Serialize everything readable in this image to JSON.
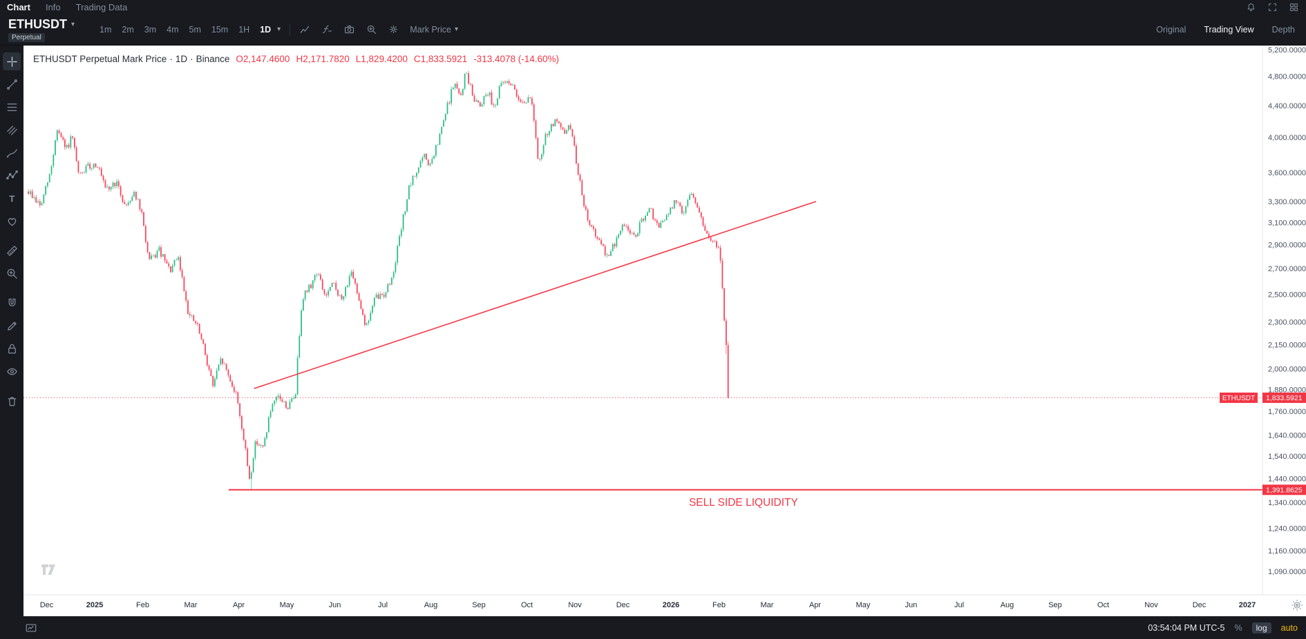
{
  "menu_bar": {
    "tabs": [
      {
        "label": "Chart",
        "active": true
      },
      {
        "label": "Info",
        "active": false
      },
      {
        "label": "Trading Data",
        "active": false
      }
    ]
  },
  "symbol_bar": {
    "symbol": "ETHUSDT",
    "contract_badge": "Perpetual",
    "intervals": [
      "1m",
      "2m",
      "3m",
      "4m",
      "5m",
      "15m",
      "1H",
      "1D"
    ],
    "active_interval": "1D",
    "price_type": "Mark Price",
    "view_tabs": [
      {
        "label": "Original",
        "active": false
      },
      {
        "label": "Trading View",
        "active": true
      },
      {
        "label": "Depth",
        "active": false
      }
    ]
  },
  "drawing_toolbar": [
    "crosshair-icon",
    "trendline-icon",
    "fib-retracement-icon",
    "pitchfork-icon",
    "brush-icon",
    "pattern-icon",
    "text-icon",
    "emoji-icon",
    "measure-icon",
    "zoom-in-icon",
    "magnet-icon",
    "edit-icon",
    "lock-icon",
    "visibility-icon",
    "trash-icon"
  ],
  "legend": {
    "title": "ETHUSDT Perpetual Mark Price",
    "sep": "·",
    "interval": "1D",
    "exchange": "Binance",
    "open": "O2,147.4600",
    "high": "H2,171.7820",
    "low": "L1,829.4200",
    "close": "C1,833.5921",
    "change": "-313.4078 (-14.60%)"
  },
  "chart_data": {
    "type": "candlestick",
    "title": "ETHUSDT Perpetual Mark Price · 1D · Binance",
    "scale": "log",
    "last_candle": {
      "open": 2147.46,
      "high": 2171.782,
      "low": 1829.42,
      "close": 1833.5921,
      "change": -313.4078,
      "change_pct": -14.6
    },
    "current_price": 1833.5921,
    "y_ticks": [
      5200,
      4800,
      4400,
      4000,
      3600,
      3300,
      3100,
      2900,
      2700,
      2500,
      2300,
      2150,
      2000,
      1880,
      1760,
      1640,
      1540,
      1440,
      1340,
      1240,
      1160,
      1090
    ],
    "x_ticks": [
      {
        "t": 0,
        "label": "Dec"
      },
      {
        "t": 1,
        "label": "2025",
        "year": true
      },
      {
        "t": 2,
        "label": "Feb"
      },
      {
        "t": 3,
        "label": "Mar"
      },
      {
        "t": 4,
        "label": "Apr"
      },
      {
        "t": 5,
        "label": "May"
      },
      {
        "t": 6,
        "label": "Jun"
      },
      {
        "t": 7,
        "label": "Jul"
      },
      {
        "t": 8,
        "label": "Aug"
      },
      {
        "t": 9,
        "label": "Sep"
      },
      {
        "t": 10,
        "label": "Oct"
      },
      {
        "t": 11,
        "label": "Nov"
      },
      {
        "t": 12,
        "label": "Dec"
      },
      {
        "t": 13,
        "label": "2026",
        "year": true
      },
      {
        "t": 14,
        "label": "Feb"
      },
      {
        "t": 15,
        "label": "Mar"
      },
      {
        "t": 16,
        "label": "Apr"
      },
      {
        "t": 17,
        "label": "May"
      },
      {
        "t": 18,
        "label": "Jun"
      },
      {
        "t": 19,
        "label": "Jul"
      },
      {
        "t": 20,
        "label": "Aug"
      },
      {
        "t": 21,
        "label": "Sep"
      },
      {
        "t": 22,
        "label": "Oct"
      },
      {
        "t": 23,
        "label": "Nov"
      },
      {
        "t": 24,
        "label": "Dec"
      },
      {
        "t": 25,
        "label": "2027",
        "year": true
      }
    ],
    "price_path": [
      [
        -0.36,
        3400
      ],
      [
        -0.1,
        3250
      ],
      [
        0.1,
        3600
      ],
      [
        0.24,
        4100
      ],
      [
        0.42,
        3850
      ],
      [
        0.55,
        4000
      ],
      [
        0.69,
        3550
      ],
      [
        0.85,
        3650
      ],
      [
        1.07,
        3700
      ],
      [
        1.25,
        3400
      ],
      [
        1.46,
        3500
      ],
      [
        1.66,
        3250
      ],
      [
        1.85,
        3400
      ],
      [
        2.01,
        3150
      ],
      [
        2.15,
        2750
      ],
      [
        2.36,
        2850
      ],
      [
        2.58,
        2680
      ],
      [
        2.76,
        2780
      ],
      [
        2.98,
        2350
      ],
      [
        3.15,
        2280
      ],
      [
        3.33,
        2080
      ],
      [
        3.48,
        1900
      ],
      [
        3.66,
        2060
      ],
      [
        3.85,
        1930
      ],
      [
        3.99,
        1830
      ],
      [
        4.12,
        1620
      ],
      [
        4.25,
        1430
      ],
      [
        4.38,
        1620
      ],
      [
        4.52,
        1570
      ],
      [
        4.68,
        1760
      ],
      [
        4.85,
        1840
      ],
      [
        5.04,
        1780
      ],
      [
        5.2,
        1850
      ],
      [
        5.34,
        2480
      ],
      [
        5.51,
        2560
      ],
      [
        5.65,
        2680
      ],
      [
        5.82,
        2480
      ],
      [
        6.0,
        2580
      ],
      [
        6.17,
        2440
      ],
      [
        6.34,
        2670
      ],
      [
        6.52,
        2480
      ],
      [
        6.67,
        2260
      ],
      [
        6.86,
        2470
      ],
      [
        7.04,
        2500
      ],
      [
        7.21,
        2620
      ],
      [
        7.38,
        2980
      ],
      [
        7.56,
        3420
      ],
      [
        7.73,
        3620
      ],
      [
        7.87,
        3780
      ],
      [
        8.01,
        3670
      ],
      [
        8.18,
        3950
      ],
      [
        8.35,
        4350
      ],
      [
        8.51,
        4720
      ],
      [
        8.63,
        4480
      ],
      [
        8.75,
        4880
      ],
      [
        8.89,
        4520
      ],
      [
        9.05,
        4420
      ],
      [
        9.2,
        4600
      ],
      [
        9.34,
        4380
      ],
      [
        9.48,
        4680
      ],
      [
        9.64,
        4750
      ],
      [
        9.79,
        4550
      ],
      [
        9.95,
        4450
      ],
      [
        10.12,
        4500
      ],
      [
        10.26,
        3650
      ],
      [
        10.43,
        4050
      ],
      [
        10.61,
        4200
      ],
      [
        10.78,
        4050
      ],
      [
        10.92,
        4150
      ],
      [
        11.06,
        3700
      ],
      [
        11.2,
        3250
      ],
      [
        11.37,
        3050
      ],
      [
        11.54,
        2900
      ],
      [
        11.72,
        2800
      ],
      [
        11.89,
        2950
      ],
      [
        12.06,
        3100
      ],
      [
        12.24,
        2950
      ],
      [
        12.41,
        3100
      ],
      [
        12.58,
        3220
      ],
      [
        12.76,
        3050
      ],
      [
        12.93,
        3150
      ],
      [
        13.1,
        3300
      ],
      [
        13.28,
        3200
      ],
      [
        13.41,
        3380
      ],
      [
        13.55,
        3300
      ],
      [
        13.69,
        3050
      ],
      [
        13.83,
        2950
      ],
      [
        13.93,
        2900
      ],
      [
        14.04,
        2850
      ],
      [
        14.11,
        2400
      ],
      [
        14.16,
        2150
      ],
      [
        14.21,
        1834
      ]
    ],
    "drawings": {
      "trendline": {
        "from": [
          4.32,
          1885
        ],
        "to": [
          16.02,
          3300
        ]
      },
      "sell_side_line": {
        "price": 1391.8625,
        "from_t": 3.79,
        "label": "1,391.8625"
      },
      "annotation": {
        "text": "SELL SIDE LIQUIDITY",
        "t": 14.51,
        "price": 1340
      }
    },
    "colors": {
      "up": "#2ebd85",
      "down": "#f6465d",
      "drawing": "#f23645"
    }
  },
  "price_axis": {
    "symbol_badge": "ETHUSDT",
    "price_badge": "1,833.5921",
    "level_badge": "1,391.8625"
  },
  "status_bar": {
    "clock": "03:54:04 PM UTC-5",
    "percent": "%",
    "log": "log",
    "auto": "auto"
  }
}
